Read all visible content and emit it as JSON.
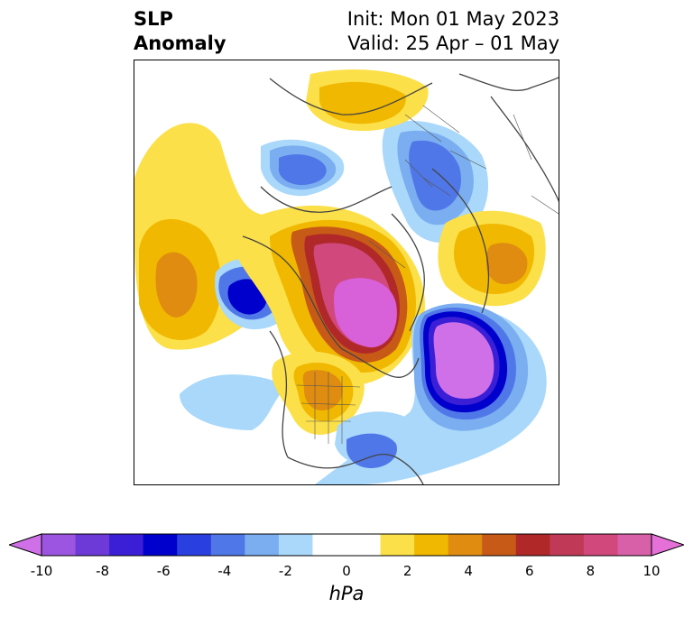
{
  "title": {
    "line1": "SLP",
    "line2": "Anomaly"
  },
  "subtitle": {
    "line1": "Init: Mon 01 May 2023",
    "line2": "Valid: 25 Apr – 01 May"
  },
  "colorbar": {
    "unit": "hPa",
    "levels": [
      -10,
      -9,
      -8,
      -7,
      -6,
      -5,
      -4,
      -3,
      -2,
      -1,
      1,
      2,
      3,
      4,
      5,
      6,
      7,
      8,
      9,
      10
    ],
    "tick_labels": [
      "-10",
      "-8",
      "-6",
      "-4",
      "-2",
      "0",
      "2",
      "4",
      "6",
      "8",
      "10"
    ],
    "colors": [
      "#d070e8",
      "#9b55e0",
      "#6d3ad8",
      "#3a1fd6",
      "#0000cc",
      "#2a3fe0",
      "#5077e8",
      "#7aaef0",
      "#aad8fa",
      "#ffffff",
      "#ffffff",
      "#fce049",
      "#f0b800",
      "#e08c10",
      "#c85a18",
      "#b02828",
      "#c03a58",
      "#d0487c",
      "#d860a8",
      "#e470d8"
    ]
  },
  "anomaly_colors": {
    "deep_low": "#0000cc",
    "low": "#2a3fe0",
    "mid_low": "#5077e8",
    "light_low": "#7aaef0",
    "pale_low": "#aad8fa",
    "extreme_low": "#d070e8",
    "pale_high": "#fce049",
    "high": "#f0b800",
    "mid_high": "#e08c10",
    "strong_high": "#c85a18",
    "very_high": "#b02828",
    "extreme_high": "#d0487c",
    "max_high": "#d860d8"
  }
}
